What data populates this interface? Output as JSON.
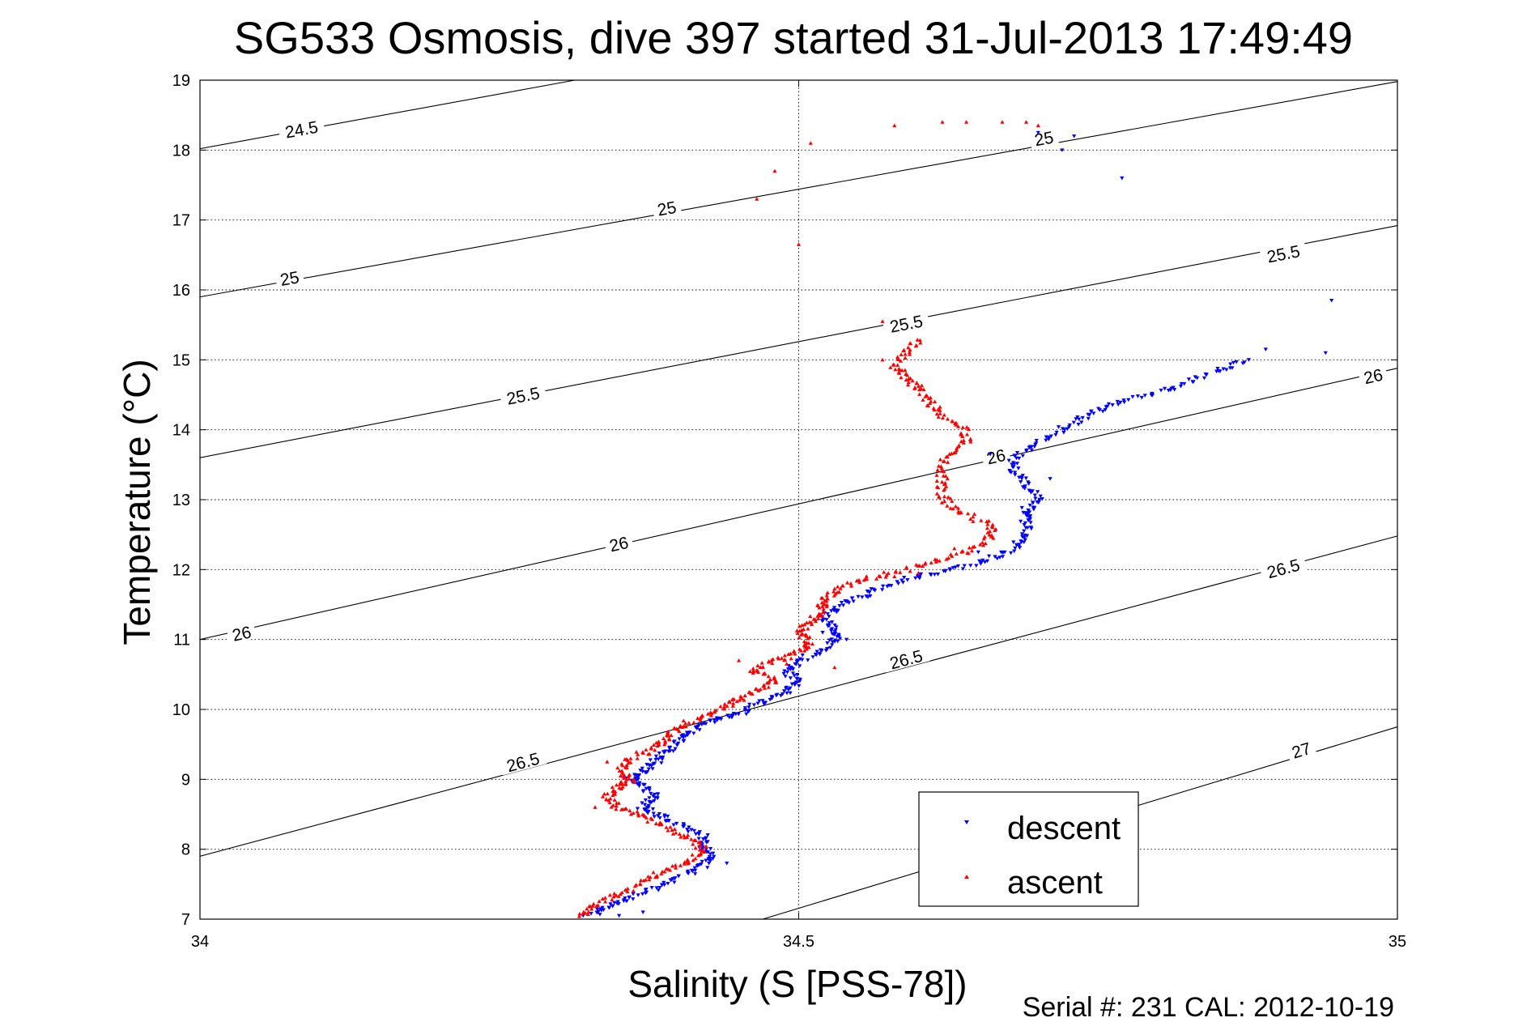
{
  "chart_data": {
    "type": "scatter",
    "title": "SG533 Osmosis, dive 397 started 31-Jul-2013 17:49:49",
    "xlabel": "Salinity (S [PSS-78])",
    "ylabel": "Temperature (°C)",
    "xlim": [
      34,
      35
    ],
    "ylim": [
      7,
      19
    ],
    "x_ticks": [
      34,
      34.5,
      35
    ],
    "x_tick_labels": [
      "34",
      "34.5",
      "35"
    ],
    "y_ticks": [
      7,
      8,
      9,
      10,
      11,
      12,
      13,
      14,
      15,
      16,
      17,
      18,
      19
    ],
    "y_tick_labels": [
      "7",
      "8",
      "9",
      "10",
      "11",
      "12",
      "13",
      "14",
      "15",
      "16",
      "17",
      "18",
      "19"
    ],
    "grid": true,
    "legend": "bottom-right",
    "footer": "Serial #: 231  CAL: 2012-10-19",
    "density_contours": [
      {
        "label": "24.5",
        "points": [
          [
            34,
            18.02
          ],
          [
            34.313,
            19
          ]
        ],
        "label_positions": [
          [
            34.085,
            18.28
          ]
        ]
      },
      {
        "label": "25",
        "points": [
          [
            34,
            15.9
          ],
          [
            35,
            18.98
          ]
        ],
        "label_positions": [
          [
            34.075,
            16.15
          ],
          [
            34.39,
            17.15
          ],
          [
            34.705,
            18.15
          ]
        ]
      },
      {
        "label": "25.5",
        "points": [
          [
            34,
            13.6
          ],
          [
            35,
            16.92
          ]
        ],
        "label_positions": [
          [
            34.27,
            14.47
          ],
          [
            34.59,
            15.5
          ],
          [
            34.905,
            16.5
          ]
        ]
      },
      {
        "label": "26",
        "points": [
          [
            34,
            11.0
          ],
          [
            35,
            14.88
          ]
        ],
        "label_positions": [
          [
            34.035,
            11.07
          ],
          [
            34.35,
            12.35
          ],
          [
            34.665,
            13.6
          ],
          [
            34.98,
            14.75
          ]
        ]
      },
      {
        "label": "26.5",
        "points": [
          [
            34,
            7.9
          ],
          [
            35,
            12.48
          ]
        ],
        "label_positions": [
          [
            34.27,
            9.23
          ],
          [
            34.59,
            10.7
          ],
          [
            34.905,
            12.0
          ]
        ]
      },
      {
        "label": "27",
        "points": [
          [
            34.47,
            7.0
          ],
          [
            35,
            9.75
          ]
        ],
        "label_positions": [
          [
            34.92,
            9.4
          ]
        ]
      }
    ],
    "series": [
      {
        "name": "descent",
        "color": "#0000ff",
        "marker": "triangle-down",
        "path": [
          [
            34.33,
            7.05
          ],
          [
            34.34,
            7.2
          ],
          [
            34.36,
            7.3
          ],
          [
            34.38,
            7.45
          ],
          [
            34.4,
            7.6
          ],
          [
            34.42,
            7.75
          ],
          [
            34.43,
            7.9
          ],
          [
            34.42,
            8.05
          ],
          [
            34.42,
            8.2
          ],
          [
            34.4,
            8.35
          ],
          [
            34.38,
            8.5
          ],
          [
            34.37,
            8.6
          ],
          [
            34.38,
            8.75
          ],
          [
            34.37,
            8.9
          ],
          [
            34.36,
            9.0
          ],
          [
            34.37,
            9.1
          ],
          [
            34.38,
            9.25
          ],
          [
            34.39,
            9.4
          ],
          [
            34.4,
            9.55
          ],
          [
            34.41,
            9.7
          ],
          [
            34.43,
            9.85
          ],
          [
            34.45,
            9.95
          ],
          [
            34.47,
            10.1
          ],
          [
            34.49,
            10.25
          ],
          [
            34.5,
            10.4
          ],
          [
            34.49,
            10.55
          ],
          [
            34.5,
            10.7
          ],
          [
            34.52,
            10.85
          ],
          [
            34.53,
            11.0
          ],
          [
            34.53,
            11.15
          ],
          [
            34.52,
            11.3
          ],
          [
            34.53,
            11.45
          ],
          [
            34.55,
            11.6
          ],
          [
            34.57,
            11.75
          ],
          [
            34.6,
            11.9
          ],
          [
            34.63,
            12.0
          ],
          [
            34.66,
            12.15
          ],
          [
            34.68,
            12.3
          ],
          [
            34.69,
            12.5
          ],
          [
            34.69,
            12.7
          ],
          [
            34.69,
            12.85
          ],
          [
            34.7,
            13.0
          ],
          [
            34.69,
            13.2
          ],
          [
            34.68,
            13.4
          ],
          [
            34.68,
            13.6
          ],
          [
            34.7,
            13.8
          ],
          [
            34.72,
            14.0
          ],
          [
            34.74,
            14.2
          ],
          [
            34.76,
            14.35
          ],
          [
            34.79,
            14.5
          ],
          [
            34.82,
            14.65
          ],
          [
            34.85,
            14.85
          ],
          [
            34.88,
            15.0
          ]
        ],
        "points": [
          [
            34.89,
            15.15
          ],
          [
            34.94,
            15.1
          ],
          [
            34.945,
            15.85
          ],
          [
            34.7,
            18.25
          ],
          [
            34.73,
            18.2
          ],
          [
            34.72,
            18.0
          ],
          [
            34.77,
            17.6
          ],
          [
            34.71,
            13.3
          ],
          [
            34.66,
            13.65
          ],
          [
            34.65,
            12.25
          ],
          [
            34.32,
            7.05
          ],
          [
            34.35,
            7.05
          ],
          [
            34.37,
            7.1
          ],
          [
            34.44,
            7.8
          ],
          [
            34.52,
            11.1
          ],
          [
            34.54,
            11.0
          ]
        ]
      },
      {
        "name": "ascent",
        "color": "#ff0000",
        "marker": "triangle-up",
        "path": [
          [
            34.32,
            7.05
          ],
          [
            34.33,
            7.2
          ],
          [
            34.35,
            7.35
          ],
          [
            34.37,
            7.55
          ],
          [
            34.39,
            7.7
          ],
          [
            34.41,
            7.85
          ],
          [
            34.42,
            8.0
          ],
          [
            34.41,
            8.15
          ],
          [
            34.39,
            8.3
          ],
          [
            34.37,
            8.45
          ],
          [
            34.35,
            8.6
          ],
          [
            34.34,
            8.75
          ],
          [
            34.35,
            8.9
          ],
          [
            34.36,
            9.0
          ],
          [
            34.35,
            9.15
          ],
          [
            34.36,
            9.3
          ],
          [
            34.38,
            9.45
          ],
          [
            34.39,
            9.6
          ],
          [
            34.4,
            9.75
          ],
          [
            34.42,
            9.9
          ],
          [
            34.44,
            10.05
          ],
          [
            34.45,
            10.15
          ],
          [
            34.47,
            10.3
          ],
          [
            34.48,
            10.45
          ],
          [
            34.46,
            10.55
          ],
          [
            34.48,
            10.7
          ],
          [
            34.5,
            10.8
          ],
          [
            34.51,
            10.95
          ],
          [
            34.5,
            11.1
          ],
          [
            34.51,
            11.25
          ],
          [
            34.52,
            11.4
          ],
          [
            34.52,
            11.55
          ],
          [
            34.53,
            11.7
          ],
          [
            34.55,
            11.85
          ],
          [
            34.58,
            11.95
          ],
          [
            34.61,
            12.1
          ],
          [
            34.64,
            12.25
          ],
          [
            34.66,
            12.45
          ],
          [
            34.66,
            12.65
          ],
          [
            34.63,
            12.85
          ],
          [
            34.62,
            13.05
          ],
          [
            34.62,
            13.3
          ],
          [
            34.62,
            13.55
          ],
          [
            34.64,
            13.8
          ],
          [
            34.64,
            14.0
          ],
          [
            34.62,
            14.2
          ],
          [
            34.61,
            14.4
          ],
          [
            34.6,
            14.6
          ],
          [
            34.59,
            14.75
          ],
          [
            34.58,
            14.9
          ],
          [
            34.59,
            15.1
          ],
          [
            34.6,
            15.3
          ]
        ],
        "points": [
          [
            34.57,
            15.0
          ],
          [
            34.58,
            18.35
          ],
          [
            34.62,
            18.4
          ],
          [
            34.64,
            18.4
          ],
          [
            34.67,
            18.4
          ],
          [
            34.69,
            18.4
          ],
          [
            34.7,
            18.35
          ],
          [
            34.51,
            18.1
          ],
          [
            34.48,
            17.7
          ],
          [
            34.465,
            17.3
          ],
          [
            34.5,
            16.65
          ],
          [
            34.57,
            15.55
          ],
          [
            34.34,
            9.25
          ],
          [
            34.36,
            8.5
          ],
          [
            34.33,
            8.6
          ],
          [
            34.45,
            10.7
          ],
          [
            34.47,
            10.6
          ],
          [
            34.49,
            10.65
          ],
          [
            34.53,
            10.6
          ],
          [
            34.58,
            11.9
          ],
          [
            34.6,
            11.95
          ],
          [
            34.63,
            12.3
          ]
        ]
      }
    ]
  }
}
